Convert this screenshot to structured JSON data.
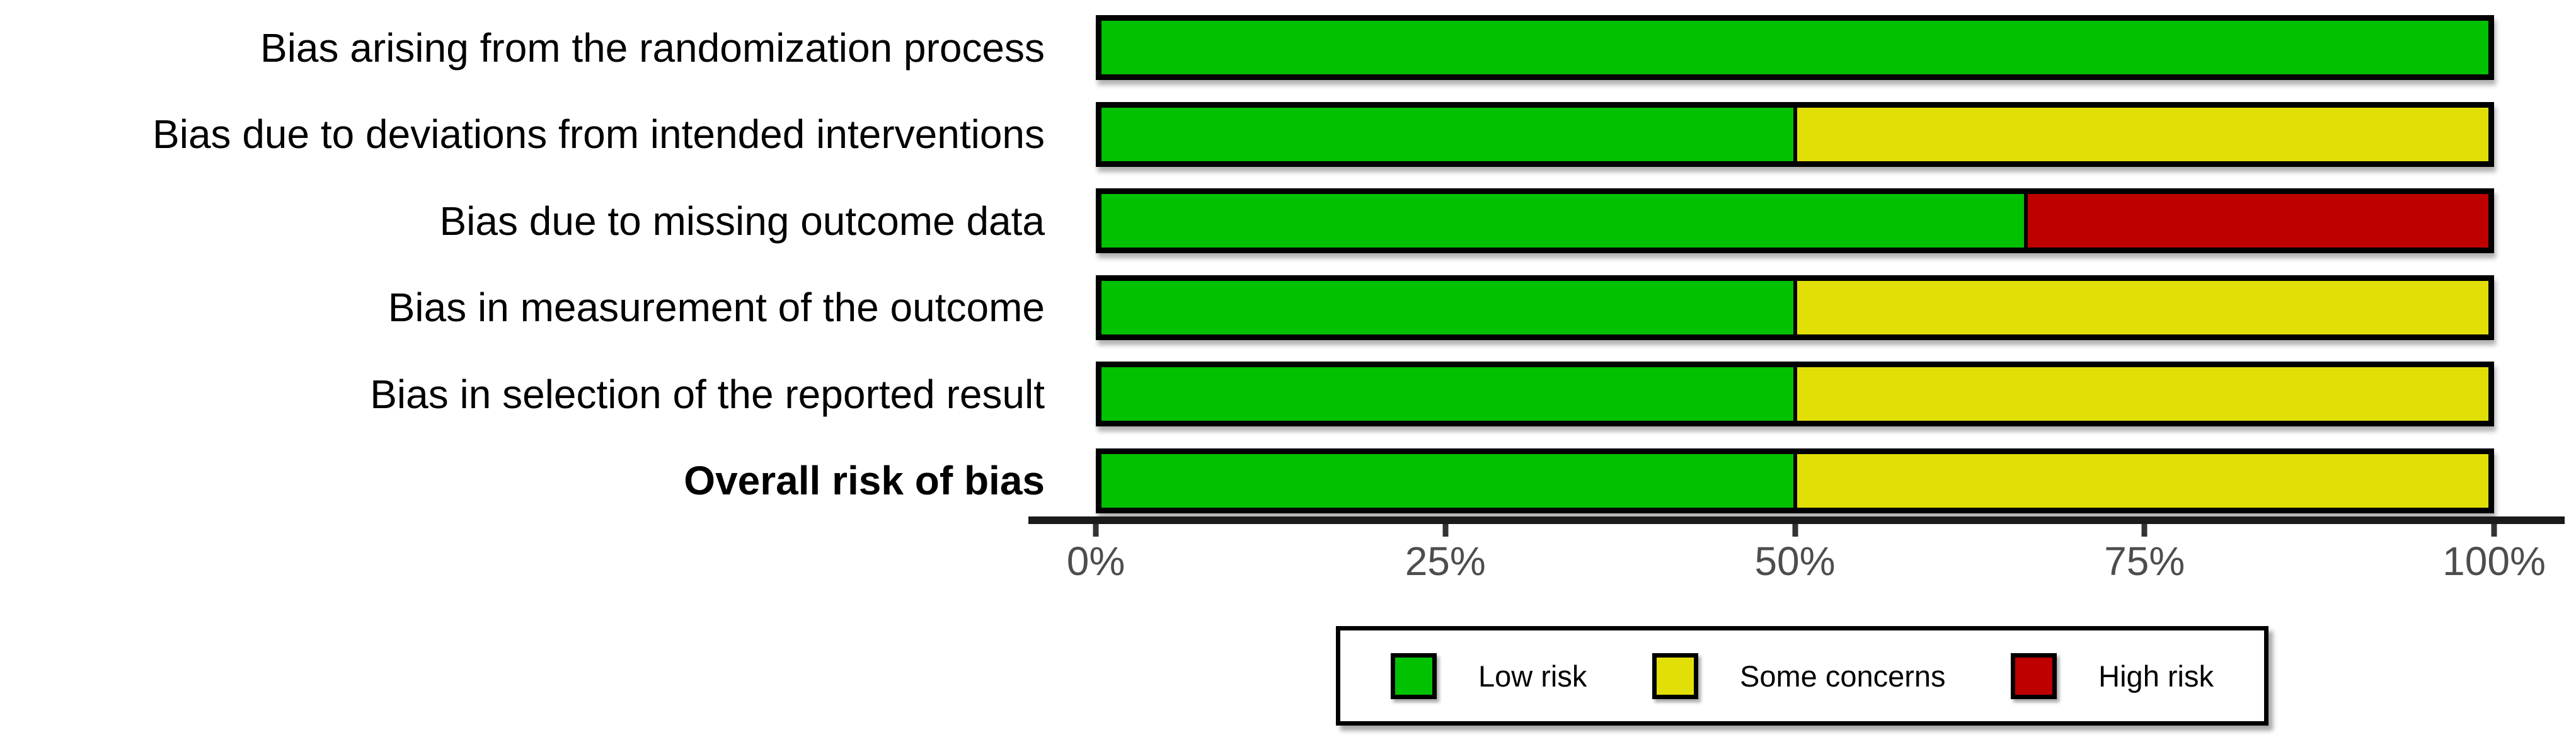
{
  "chart_data": {
    "type": "bar",
    "orientation": "horizontal_stacked",
    "title": "",
    "xlabel": "",
    "ylabel": "",
    "xlim": [
      0,
      100
    ],
    "grid": false,
    "legend_position": "bottom",
    "categories": [
      "Bias arising from the randomization process",
      "Bias due to deviations from intended interventions",
      "Bias due to missing outcome data",
      "Bias in measurement of the outcome",
      "Bias in selection of the reported result",
      "Overall risk of bias"
    ],
    "category_bold": [
      false,
      false,
      false,
      false,
      false,
      true
    ],
    "series": [
      {
        "name": "Low risk",
        "color": "#02C100",
        "values": [
          100,
          50,
          66.7,
          50,
          50,
          50
        ]
      },
      {
        "name": "Some concerns",
        "color": "#E2DF07",
        "values": [
          0,
          50,
          0,
          50,
          50,
          50
        ]
      },
      {
        "name": "High risk",
        "color": "#BF0000",
        "values": [
          0,
          0,
          33.3,
          0,
          0,
          0
        ]
      }
    ],
    "x_ticks": [
      "0%",
      "25%",
      "50%",
      "75%",
      "100%"
    ],
    "legend": [
      {
        "label": "Low risk",
        "color": "#02C100"
      },
      {
        "label": "Some concerns",
        "color": "#E2DF07"
      },
      {
        "label": "High risk",
        "color": "#BF0000"
      }
    ]
  },
  "colors": {
    "background": "#FFFFFF",
    "bar_border": "#000000",
    "axis_line": "#1A1A1A",
    "tick_mark": "#333333",
    "tick_label": "#4D4D4D",
    "label_text": "#000000"
  }
}
